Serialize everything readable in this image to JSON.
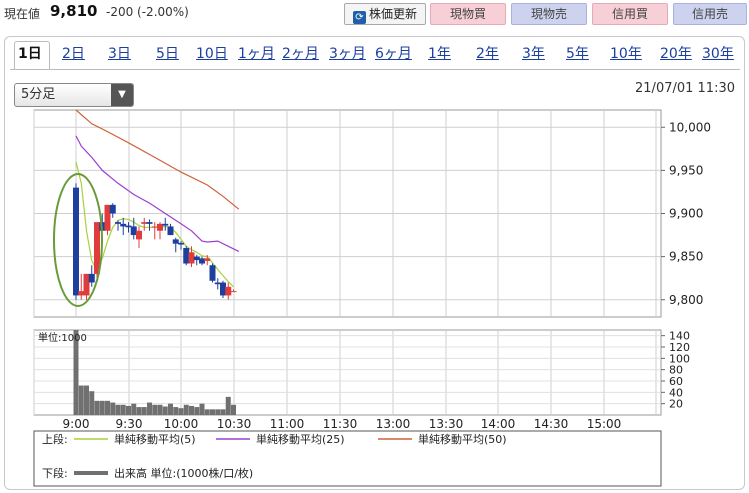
{
  "header": {
    "current_label": "現在値",
    "current_price": "9,810",
    "change": "-200 (-2.00%)",
    "buttons": {
      "refresh": "株価更新",
      "spot_buy": "現物買",
      "spot_sell": "現物売",
      "margin_buy": "信用買",
      "margin_sell": "信用売"
    }
  },
  "tabs": [
    "1日",
    "2日",
    "3日",
    "5日",
    "10日",
    "1ヶ月",
    "2ヶ月",
    "3ヶ月",
    "6ヶ月",
    "1年",
    "2年",
    "3年",
    "5年",
    "10年",
    "20年",
    "30年"
  ],
  "active_tab": "1日",
  "interval_select": "5分足",
  "datetime": "21/07/01 11:30",
  "colors": {
    "up": "#e03c3c",
    "down": "#1f3f9e",
    "ma5": "#a9d13c",
    "ma25": "#9b3fd0",
    "ma50": "#d0603a",
    "volume": "#707070",
    "highlight": "#6a9b3a"
  },
  "chart_data": {
    "type": "candlestick",
    "interval_minutes": 5,
    "time_range": [
      "9:00",
      "15:00"
    ],
    "x_tick_labels": [
      "9:00",
      "9:30",
      "10:00",
      "10:30",
      "11:00",
      "11:30",
      "13:00",
      "13:30",
      "14:00",
      "14:30",
      "15:00"
    ],
    "price_axis": {
      "ticks": [
        "9,800",
        "9,850",
        "9,900",
        "9,950",
        "10,000"
      ],
      "ylim": [
        9780,
        10020
      ]
    },
    "candles": [
      {
        "time": "9:00",
        "open": 9930,
        "high": 9935,
        "low": 9800,
        "close": 9805
      },
      {
        "time": "9:05",
        "open": 9805,
        "high": 9830,
        "low": 9800,
        "close": 9810
      },
      {
        "time": "9:10",
        "open": 9805,
        "high": 9830,
        "low": 9800,
        "close": 9830
      },
      {
        "time": "9:15",
        "open": 9830,
        "high": 9840,
        "low": 9815,
        "close": 9820
      },
      {
        "time": "9:20",
        "open": 9830,
        "high": 9890,
        "low": 9825,
        "close": 9890
      },
      {
        "time": "9:25",
        "open": 9890,
        "high": 9900,
        "low": 9880,
        "close": 9880
      },
      {
        "time": "9:30",
        "open": 9880,
        "high": 9910,
        "low": 9875,
        "close": 9910
      },
      {
        "time": "9:35",
        "open": 9910,
        "high": 9912,
        "low": 9895,
        "close": 9900
      },
      {
        "time": "9:40",
        "open": 9890,
        "high": 9892,
        "low": 9880,
        "close": 9888
      },
      {
        "time": "9:45",
        "open": 9888,
        "high": 9895,
        "low": 9875,
        "close": 9885
      },
      {
        "time": "9:50",
        "open": 9886,
        "high": 9890,
        "low": 9878,
        "close": 9884
      },
      {
        "time": "9:55",
        "open": 9885,
        "high": 9895,
        "low": 9870,
        "close": 9875
      },
      {
        "time": "10:00",
        "open": 9870,
        "high": 9885,
        "low": 9860,
        "close": 9880
      },
      {
        "time": "10:05",
        "open": 9888,
        "high": 9895,
        "low": 9880,
        "close": 9890
      },
      {
        "time": "10:10",
        "open": 9890,
        "high": 9893,
        "low": 9880,
        "close": 9888
      },
      {
        "time": "10:15",
        "open": 9884,
        "high": 9890,
        "low": 9870,
        "close": 9885
      },
      {
        "time": "10:20",
        "open": 9880,
        "high": 9890,
        "low": 9870,
        "close": 9888
      },
      {
        "time": "10:25",
        "open": 9888,
        "high": 9895,
        "low": 9880,
        "close": 9886
      },
      {
        "time": "10:30",
        "open": 9885,
        "high": 9888,
        "low": 9875,
        "close": 9875
      },
      {
        "time": "10:35",
        "open": 9870,
        "high": 9872,
        "low": 9855,
        "close": 9865
      },
      {
        "time": "10:40",
        "open": 9866,
        "high": 9868,
        "low": 9858,
        "close": 9864
      },
      {
        "time": "10:45",
        "open": 9860,
        "high": 9862,
        "low": 9840,
        "close": 9842
      },
      {
        "time": "10:50",
        "open": 9842,
        "high": 9862,
        "low": 9838,
        "close": 9855
      },
      {
        "time": "10:55",
        "open": 9850,
        "high": 9852,
        "low": 9840,
        "close": 9846
      },
      {
        "time": "11:00",
        "open": 9848,
        "high": 9850,
        "low": 9840,
        "close": 9842
      },
      {
        "time": "11:05",
        "open": 9845,
        "high": 9852,
        "low": 9840,
        "close": 9848
      },
      {
        "time": "11:10",
        "open": 9840,
        "high": 9842,
        "low": 9820,
        "close": 9822
      },
      {
        "time": "11:15",
        "open": 9820,
        "high": 9825,
        "low": 9812,
        "close": 9818
      },
      {
        "time": "11:20",
        "open": 9820,
        "high": 9822,
        "low": 9802,
        "close": 9805
      },
      {
        "time": "11:25",
        "open": 9805,
        "high": 9820,
        "low": 9800,
        "close": 9815
      },
      {
        "time": "11:30",
        "open": 9810,
        "high": 9812,
        "low": 9810,
        "close": 9810
      }
    ],
    "moving_averages": [
      {
        "name": "単純移動平均(5)",
        "points": [
          [
            0,
            9960
          ],
          [
            1,
            9935
          ],
          [
            2,
            9880
          ],
          [
            3,
            9845
          ],
          [
            4,
            9835
          ],
          [
            5,
            9848
          ],
          [
            6,
            9868
          ],
          [
            7,
            9884
          ],
          [
            8,
            9892
          ],
          [
            9,
            9894
          ],
          [
            10,
            9893
          ],
          [
            11,
            9890
          ],
          [
            12,
            9886
          ],
          [
            13,
            9884
          ],
          [
            14,
            9884
          ],
          [
            15,
            9884
          ],
          [
            16,
            9884
          ],
          [
            17,
            9885
          ],
          [
            18,
            9884
          ],
          [
            19,
            9878
          ],
          [
            20,
            9870
          ],
          [
            21,
            9862
          ],
          [
            22,
            9858
          ],
          [
            23,
            9855
          ],
          [
            24,
            9851
          ],
          [
            25,
            9850
          ],
          [
            26,
            9843
          ],
          [
            27,
            9835
          ],
          [
            28,
            9828
          ],
          [
            29,
            9821
          ],
          [
            30,
            9815
          ]
        ]
      },
      {
        "name": "単純移動平均(25)",
        "points": [
          [
            0,
            9990
          ],
          [
            1,
            9978
          ],
          [
            3,
            9965
          ],
          [
            5,
            9950
          ],
          [
            8,
            9935
          ],
          [
            11,
            9922
          ],
          [
            14,
            9912
          ],
          [
            17,
            9900
          ],
          [
            20,
            9888
          ],
          [
            22,
            9880
          ],
          [
            24,
            9868
          ],
          [
            25,
            9867
          ],
          [
            27,
            9868
          ],
          [
            29,
            9862
          ],
          [
            31,
            9856
          ]
        ]
      },
      {
        "name": "単純移動平均(50)",
        "points": [
          [
            0,
            10020
          ],
          [
            3,
            10004
          ],
          [
            6,
            9995
          ],
          [
            10,
            9982
          ],
          [
            15,
            9965
          ],
          [
            20,
            9948
          ],
          [
            25,
            9933
          ],
          [
            28,
            9920
          ],
          [
            31,
            9905
          ]
        ]
      }
    ],
    "volume": {
      "unit_label": "単位:1000",
      "ticks": [
        "20",
        "40",
        "60",
        "80",
        "100",
        "120",
        "140"
      ],
      "ylim": [
        0,
        150
      ],
      "values": [
        150,
        52,
        52,
        42,
        25,
        25,
        25,
        22,
        18,
        18,
        16,
        20,
        14,
        14,
        22,
        18,
        18,
        15,
        20,
        14,
        12,
        18,
        16,
        14,
        20,
        10,
        10,
        10,
        10,
        32,
        18
      ]
    },
    "legend": {
      "upper_label": "上段:",
      "lower_label": "下段:",
      "volume_label": "出来高 単位:(1000株/口/枚)"
    },
    "annotation": "ellipse-highlight-9:00"
  }
}
